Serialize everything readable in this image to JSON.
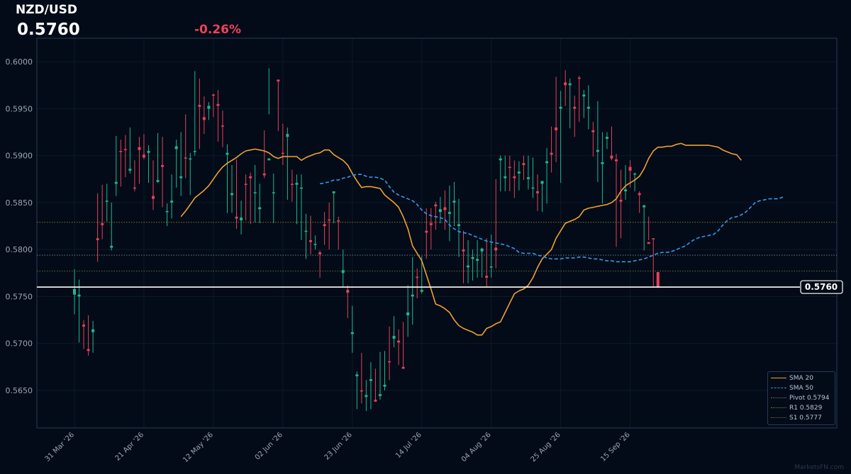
{
  "header": {
    "symbol": "NZD/USD",
    "last_price": "0.5760",
    "change": "-0.26%"
  },
  "watermark": "MarketsFN.com",
  "colors": {
    "background": "#020b17",
    "frame": "#2a3a58",
    "up": "#1fb891",
    "down": "#e8405a",
    "sma20": "#f0a030",
    "sma50": "#3399ee",
    "pivot": "#6e7a8e",
    "r1": "#8a7a2e",
    "s1": "#6a6a4a",
    "price_line": "#ffffff",
    "change": "#f0415a"
  },
  "legend": [
    {
      "label": "SMA 20",
      "style": "solid",
      "color": "#f0a030"
    },
    {
      "label": "SMA 50",
      "style": "dashed",
      "color": "#3399ee"
    },
    {
      "label": "Pivot 0.5794",
      "style": "dotted",
      "color": "#6e7a8e"
    },
    {
      "label": "R1 0.5829",
      "style": "dotted",
      "color": "#8a7a2e"
    },
    {
      "label": "S1 0.5777",
      "style": "dotted",
      "color": "#6a6a4a"
    }
  ],
  "chart_data": {
    "type": "candlestick",
    "x_start_date": "2026-03-31",
    "ylim": [
      0.561,
      0.6025
    ],
    "y_ticks": [
      "0.5650",
      "0.5700",
      "0.5750",
      "0.5800",
      "0.5850",
      "0.5900",
      "0.5950",
      "0.6000"
    ],
    "x_ticks": [
      {
        "label": "31 Mar '26",
        "index": 0
      },
      {
        "label": "21 Apr '26",
        "index": 15
      },
      {
        "label": "12 May '26",
        "index": 30
      },
      {
        "label": "02 Jun '26",
        "index": 45
      },
      {
        "label": "23 Jun '26",
        "index": 60
      },
      {
        "label": "14 Jul '26",
        "index": 75
      },
      {
        "label": "04 Aug '26",
        "index": 90
      },
      {
        "label": "25 Aug '26",
        "index": 105
      },
      {
        "label": "15 Sep '26",
        "index": 120
      }
    ],
    "last_price": 0.576,
    "levels": {
      "pivot": 0.5794,
      "r1": 0.5829,
      "s1": 0.5777
    },
    "grid": true,
    "legend_position": "bottom-right",
    "candles": [
      [
        0.5752,
        0.5758,
        0.5779,
        0.5731
      ],
      [
        0.575,
        0.5752,
        0.5768,
        0.5701
      ],
      [
        0.572,
        0.5718,
        0.5725,
        0.5694
      ],
      [
        0.5694,
        0.5692,
        0.573,
        0.5687
      ],
      [
        0.5712,
        0.5715,
        0.5724,
        0.569
      ],
      [
        0.5812,
        0.581,
        0.586,
        0.5787
      ],
      [
        0.5828,
        0.5826,
        0.5869,
        0.5811
      ],
      [
        0.5851,
        0.5852,
        0.587,
        0.583
      ],
      [
        0.5802,
        0.5804,
        0.585,
        0.5799
      ],
      [
        0.587,
        0.5872,
        0.5921,
        0.5857
      ],
      [
        0.5905,
        0.5904,
        0.5917,
        0.5867
      ],
      [
        0.5907,
        0.5906,
        0.5922,
        0.5877
      ],
      [
        0.5884,
        0.5886,
        0.593,
        0.5881
      ],
      [
        0.5866,
        0.5865,
        0.5895,
        0.5862
      ],
      [
        0.5909,
        0.5906,
        0.592,
        0.587
      ],
      [
        0.5901,
        0.5898,
        0.5923,
        0.5896
      ],
      [
        0.5903,
        0.5905,
        0.5911,
        0.5871
      ],
      [
        0.5857,
        0.5854,
        0.5895,
        0.5842
      ],
      [
        0.5872,
        0.5874,
        0.5924,
        0.5871
      ],
      [
        0.589,
        0.5888,
        0.592,
        0.5845
      ],
      [
        0.584,
        0.5841,
        0.5849,
        0.5825
      ],
      [
        0.585,
        0.5852,
        0.588,
        0.5833
      ],
      [
        0.5907,
        0.591,
        0.5917,
        0.5866
      ],
      [
        0.5876,
        0.5878,
        0.5925,
        0.5857
      ],
      [
        0.5898,
        0.5897,
        0.5944,
        0.5876
      ],
      [
        0.5896,
        0.5897,
        0.5903,
        0.5858
      ],
      [
        0.5904,
        0.5905,
        0.599,
        0.59
      ],
      [
        0.5954,
        0.5952,
        0.5982,
        0.5907
      ],
      [
        0.5941,
        0.5938,
        0.5963,
        0.5923
      ],
      [
        0.595,
        0.5953,
        0.5957,
        0.5938
      ],
      [
        0.5965,
        0.5964,
        0.5966,
        0.5941
      ],
      [
        0.5955,
        0.5953,
        0.597,
        0.5915
      ],
      [
        0.5932,
        0.5931,
        0.5948,
        0.5909
      ],
      [
        0.5901,
        0.5903,
        0.5912,
        0.5839
      ],
      [
        0.5858,
        0.586,
        0.589,
        0.5839
      ],
      [
        0.5835,
        0.5833,
        0.5896,
        0.5822
      ],
      [
        0.5831,
        0.5834,
        0.5852,
        0.5816
      ],
      [
        0.587,
        0.5869,
        0.588,
        0.5831
      ],
      [
        0.5878,
        0.5876,
        0.5882,
        0.5827
      ],
      [
        0.586,
        0.5861,
        0.589,
        0.5829
      ],
      [
        0.5843,
        0.5845,
        0.587,
        0.5828
      ],
      [
        0.5881,
        0.5879,
        0.5927,
        0.5876
      ],
      [
        0.5895,
        0.5897,
        0.5993,
        0.5944
      ],
      [
        0.586,
        0.5861,
        0.5881,
        0.5828
      ],
      [
        0.5981,
        0.5979,
        0.5979,
        0.5926
      ],
      [
        0.5903,
        0.5902,
        0.5934,
        0.589
      ],
      [
        0.592,
        0.5923,
        0.593,
        0.5853
      ],
      [
        0.587,
        0.5869,
        0.5885,
        0.5851
      ],
      [
        0.5869,
        0.5871,
        0.588,
        0.5827
      ],
      [
        0.5865,
        0.5866,
        0.588,
        0.581
      ],
      [
        0.5819,
        0.582,
        0.5838,
        0.579
      ],
      [
        0.581,
        0.5808,
        0.5836,
        0.5795
      ],
      [
        0.5805,
        0.5806,
        0.5815,
        0.58
      ],
      [
        0.5797,
        0.5795,
        0.5799,
        0.577
      ],
      [
        0.5827,
        0.5825,
        0.584,
        0.5805
      ],
      [
        0.5832,
        0.5831,
        0.585,
        0.58
      ],
      [
        0.586,
        0.5862,
        0.5862,
        0.5828
      ],
      [
        0.5831,
        0.583,
        0.5835,
        0.58
      ],
      [
        0.5775,
        0.5778,
        0.58,
        0.576
      ],
      [
        0.5757,
        0.5754,
        0.5762,
        0.5727
      ],
      [
        0.571,
        0.5712,
        0.574,
        0.569
      ],
      [
        0.5665,
        0.5667,
        0.567,
        0.563
      ],
      [
        0.565,
        0.5649,
        0.569,
        0.5636
      ],
      [
        0.5643,
        0.5645,
        0.5661,
        0.5628
      ],
      [
        0.566,
        0.5662,
        0.568,
        0.563
      ],
      [
        0.564,
        0.5638,
        0.5673,
        0.5638
      ],
      [
        0.5644,
        0.5646,
        0.5691,
        0.564
      ],
      [
        0.5654,
        0.5656,
        0.5692,
        0.565
      ],
      [
        0.5681,
        0.568,
        0.5718,
        0.5661
      ],
      [
        0.5705,
        0.5708,
        0.5729,
        0.5696
      ],
      [
        0.5703,
        0.5701,
        0.5715,
        0.5677
      ],
      [
        0.5675,
        0.5673,
        0.5723,
        0.5673
      ],
      [
        0.573,
        0.5733,
        0.5762,
        0.5707
      ],
      [
        0.575,
        0.5752,
        0.5792,
        0.572
      ],
      [
        0.5771,
        0.577,
        0.578,
        0.5748
      ],
      [
        0.5755,
        0.5757,
        0.5793,
        0.5753
      ],
      [
        0.582,
        0.5818,
        0.5844,
        0.579
      ],
      [
        0.5828,
        0.5826,
        0.5844,
        0.58
      ],
      [
        0.5848,
        0.5846,
        0.5851,
        0.5821
      ],
      [
        0.584,
        0.5843,
        0.5856,
        0.5828
      ],
      [
        0.5845,
        0.5842,
        0.5863,
        0.5821
      ],
      [
        0.5838,
        0.584,
        0.5868,
        0.5809
      ],
      [
        0.585,
        0.5852,
        0.5872,
        0.5825
      ],
      [
        0.5825,
        0.5827,
        0.5854,
        0.5792
      ],
      [
        0.58,
        0.5798,
        0.582,
        0.5764
      ],
      [
        0.5781,
        0.5783,
        0.581,
        0.5764
      ],
      [
        0.579,
        0.5792,
        0.58,
        0.5767
      ],
      [
        0.5788,
        0.579,
        0.581,
        0.577
      ],
      [
        0.5798,
        0.5801,
        0.5802,
        0.577
      ],
      [
        0.5772,
        0.577,
        0.5812,
        0.576
      ],
      [
        0.5781,
        0.5782,
        0.5816,
        0.577
      ],
      [
        0.5802,
        0.5799,
        0.5875,
        0.578
      ],
      [
        0.5895,
        0.5897,
        0.59,
        0.5862
      ],
      [
        0.5876,
        0.5878,
        0.59,
        0.5862
      ],
      [
        0.5888,
        0.5887,
        0.59,
        0.5862
      ],
      [
        0.5878,
        0.5876,
        0.5895,
        0.5855
      ],
      [
        0.5881,
        0.5883,
        0.5894,
        0.5863
      ],
      [
        0.5892,
        0.589,
        0.59,
        0.5874
      ],
      [
        0.5875,
        0.5877,
        0.59,
        0.5864
      ],
      [
        0.5865,
        0.5866,
        0.5898,
        0.5855
      ],
      [
        0.5862,
        0.586,
        0.588,
        0.5841
      ],
      [
        0.587,
        0.5873,
        0.5873,
        0.584
      ],
      [
        0.5892,
        0.5894,
        0.5908,
        0.5849
      ],
      [
        0.5903,
        0.5901,
        0.5931,
        0.5882
      ],
      [
        0.593,
        0.5927,
        0.5984,
        0.5893
      ],
      [
        0.595,
        0.5952,
        0.5969,
        0.5871
      ],
      [
        0.5978,
        0.5975,
        0.5991,
        0.5953
      ],
      [
        0.5975,
        0.5977,
        0.5982,
        0.5929
      ],
      [
        0.5952,
        0.595,
        0.5964,
        0.592
      ],
      [
        0.5983,
        0.5982,
        0.5985,
        0.5936
      ],
      [
        0.5963,
        0.5965,
        0.597,
        0.594
      ],
      [
        0.595,
        0.5952,
        0.5975,
        0.5928
      ],
      [
        0.5927,
        0.5925,
        0.5936,
        0.5899
      ],
      [
        0.5904,
        0.5906,
        0.5958,
        0.5872
      ],
      [
        0.5891,
        0.5893,
        0.5925,
        0.5849
      ],
      [
        0.5918,
        0.592,
        0.5925,
        0.5907
      ],
      [
        0.59,
        0.5897,
        0.5931,
        0.5895
      ],
      [
        0.5896,
        0.5894,
        0.5902,
        0.5803
      ],
      [
        0.5853,
        0.5851,
        0.5885,
        0.5812
      ],
      [
        0.5862,
        0.5864,
        0.589,
        0.5853
      ],
      [
        0.5888,
        0.5884,
        0.5895,
        0.5866
      ],
      [
        0.588,
        0.5881,
        0.5882,
        0.5862
      ],
      [
        0.586,
        0.5858,
        0.5862,
        0.5839
      ],
      [
        0.5845,
        0.5847,
        0.5848,
        0.5799
      ],
      [
        0.5808,
        0.5806,
        0.5835,
        0.581
      ],
      [
        0.5812,
        0.5811,
        0.5812,
        0.576
      ],
      [
        0.5776,
        0.576,
        0.5776,
        0.576
      ]
    ],
    "sma20": {
      "start": 23,
      "values": [
        0.5835,
        0.5841,
        0.5848,
        0.5855,
        0.5859,
        0.5863,
        0.5868,
        0.5875,
        0.5882,
        0.5888,
        0.5892,
        0.5895,
        0.5898,
        0.5902,
        0.5905,
        0.5906,
        0.5907,
        0.5906,
        0.5905,
        0.5903,
        0.5899,
        0.5897,
        0.5899,
        0.5899,
        0.5899,
        0.5899,
        0.5895,
        0.5898,
        0.59,
        0.5902,
        0.5903,
        0.5906,
        0.5906,
        0.5901,
        0.5898,
        0.5895,
        0.589,
        0.5881,
        0.5873,
        0.5866,
        0.5867,
        0.5867,
        0.5866,
        0.5865,
        0.5858,
        0.5854,
        0.585,
        0.5845,
        0.5835,
        0.5822,
        0.5804,
        0.5796,
        0.5788,
        0.5773,
        0.5758,
        0.5742,
        0.574,
        0.5737,
        0.5733,
        0.5725,
        0.5719,
        0.5716,
        0.5714,
        0.5712,
        0.5709,
        0.5709,
        0.5716,
        0.5718,
        0.5721,
        0.5723,
        0.5733,
        0.5743,
        0.5753,
        0.5756,
        0.5758,
        0.5762,
        0.577,
        0.5781,
        0.579,
        0.5795,
        0.58,
        0.5812,
        0.582,
        0.5828,
        0.583,
        0.5832,
        0.5835,
        0.5842,
        0.5844,
        0.5845,
        0.5846,
        0.5847,
        0.5848,
        0.585,
        0.5854,
        0.5862,
        0.5868,
        0.5871,
        0.5874,
        0.5878,
        0.5886,
        0.5897,
        0.5905,
        0.5909,
        0.5909,
        0.591,
        0.591,
        0.5912,
        0.5913,
        0.5911,
        0.5911,
        0.5911,
        0.5911,
        0.5911,
        0.5911,
        0.591,
        0.5909,
        0.5906,
        0.5904,
        0.5902,
        0.5901,
        0.5895
      ]
    },
    "sma50": {
      "start": 53,
      "values": [
        0.587,
        0.5871,
        0.5872,
        0.5874,
        0.5874,
        0.5876,
        0.5877,
        0.5879,
        0.588,
        0.588,
        0.5878,
        0.5877,
        0.5877,
        0.5876,
        0.5874,
        0.5867,
        0.5861,
        0.5858,
        0.5856,
        0.5854,
        0.5852,
        0.5848,
        0.5842,
        0.5838,
        0.5836,
        0.5835,
        0.5834,
        0.5832,
        0.5826,
        0.5822,
        0.5819,
        0.5818,
        0.5817,
        0.5815,
        0.5813,
        0.5811,
        0.5809,
        0.5808,
        0.5807,
        0.5806,
        0.5805,
        0.5803,
        0.5801,
        0.5797,
        0.5796,
        0.5796,
        0.5796,
        0.5794,
        0.5793,
        0.5791,
        0.579,
        0.579,
        0.579,
        0.5791,
        0.5791,
        0.5791,
        0.5792,
        0.5792,
        0.5791,
        0.579,
        0.579,
        0.5789,
        0.5788,
        0.5788,
        0.5787,
        0.5787,
        0.5787,
        0.5787,
        0.5788,
        0.5789,
        0.579,
        0.5792,
        0.5794,
        0.5796,
        0.5797,
        0.5797,
        0.5798,
        0.58,
        0.5802,
        0.5804,
        0.5808,
        0.5811,
        0.5813,
        0.5814,
        0.5815,
        0.5816,
        0.582,
        0.5826,
        0.5831,
        0.5834,
        0.5835,
        0.5837,
        0.584,
        0.5845,
        0.585,
        0.5852,
        0.5853,
        0.5854,
        0.5854,
        0.5854,
        0.5856
      ]
    }
  }
}
